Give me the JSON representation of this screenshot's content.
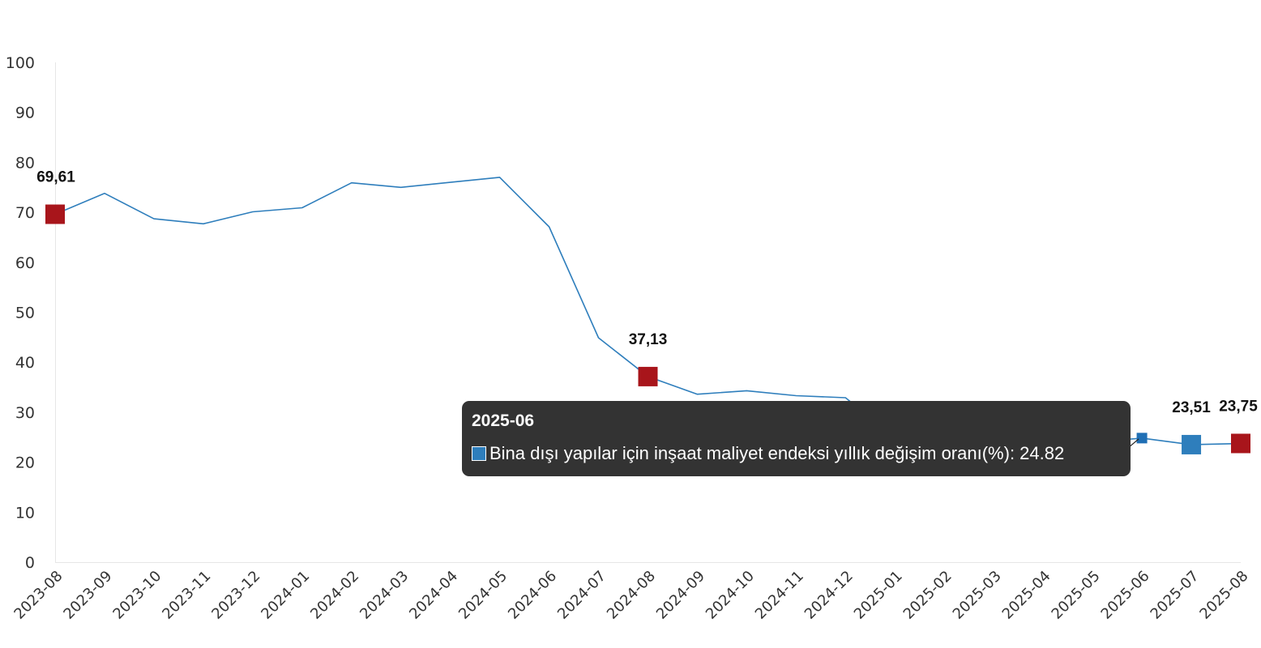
{
  "chart_data": {
    "type": "line",
    "title": "",
    "xlabel": "",
    "ylabel": "",
    "ylim": [
      0,
      100
    ],
    "yticks": [
      0,
      10,
      20,
      30,
      40,
      50,
      60,
      70,
      80,
      90,
      100
    ],
    "grid": false,
    "categories": [
      "2023-08",
      "2023-09",
      "2023-10",
      "2023-11",
      "2023-12",
      "2024-01",
      "2024-02",
      "2024-03",
      "2024-04",
      "2024-05",
      "2024-06",
      "2024-07",
      "2024-08",
      "2024-09",
      "2024-10",
      "2024-11",
      "2024-12",
      "2025-01",
      "2025-02",
      "2025-03",
      "2025-04",
      "2025-05",
      "2025-06",
      "2025-07",
      "2025-08"
    ],
    "series": [
      {
        "name": "Bina dışı yapılar için inşaat maliyet endeksi yıllık değişim oranı(%)",
        "color": "#2e7ebc",
        "values": [
          69.61,
          73.8,
          68.7,
          67.7,
          70.1,
          70.9,
          75.9,
          75.0,
          76.0,
          77.0,
          67.1,
          44.9,
          37.13,
          33.6,
          34.3,
          33.3,
          32.9,
          24.9,
          21.9,
          21.5,
          22.3,
          24.0,
          24.82,
          23.51,
          23.75
        ]
      }
    ],
    "highlighted_points": [
      {
        "category": "2023-08",
        "label": "69,61",
        "color": "#a8151b"
      },
      {
        "category": "2024-08",
        "label": "37,13",
        "color": "#a8151b"
      },
      {
        "category": "2025-07",
        "label": "23,51",
        "color": "#2e7ebc"
      },
      {
        "category": "2025-08",
        "label": "23,75",
        "color": "#a8151b"
      }
    ],
    "active_point": {
      "category": "2025-06",
      "color": "#1f6fb5"
    }
  },
  "tooltip": {
    "title": "2025-06",
    "series_name": "Bina dışı yapılar için inşaat maliyet endeksi yıllık değişim oranı(%)",
    "value": "24.82",
    "swatch_color": "#2e7ebc"
  }
}
